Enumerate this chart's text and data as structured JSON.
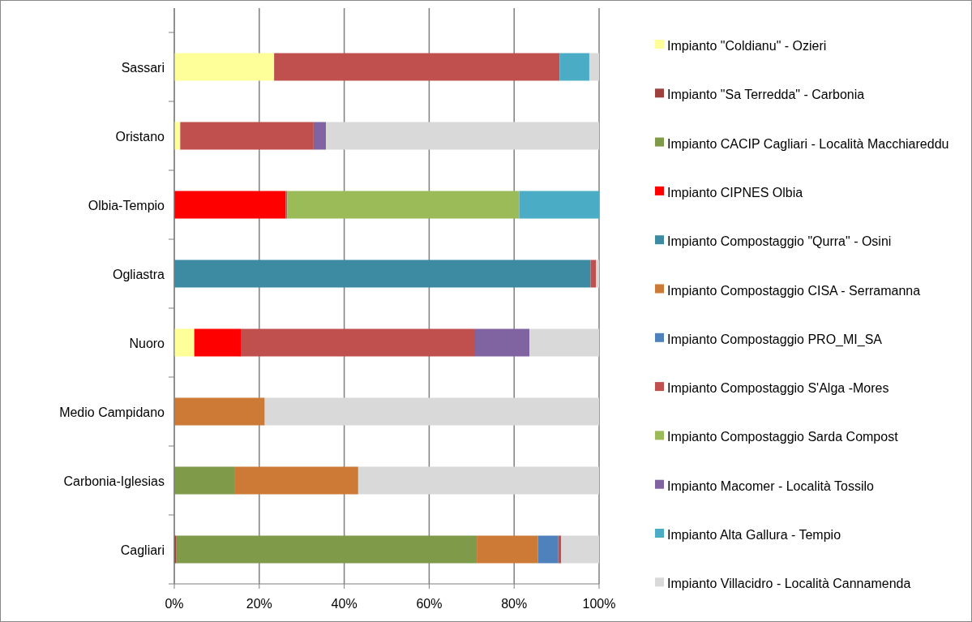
{
  "chart_data": {
    "type": "bar",
    "orientation": "horizontal",
    "stacked": true,
    "categories": [
      "Sassari",
      "Oristano",
      "Olbia-Tempio",
      "Ogliastra",
      "Nuoro",
      "Medio Campidano",
      "Carbonia-Iglesias",
      "Cagliari"
    ],
    "series": [
      {
        "name": "Impianto  \"Coldianu\" - Ozieri",
        "color": "#ffff99",
        "values": [
          23.5,
          1.4,
          0,
          0,
          4.7,
          0,
          0,
          0
        ]
      },
      {
        "name": "Impianto \"Sa Terredda\" - Carbonia",
        "color": "#a0403c",
        "values": [
          0,
          0,
          0,
          0,
          0,
          0,
          0,
          0.5
        ]
      },
      {
        "name": "Impianto CACIP Cagliari - Località Macchiareddu",
        "color": "#7f9a48",
        "values": [
          0,
          0,
          0,
          0,
          0,
          0,
          14.3,
          70.7
        ]
      },
      {
        "name": "Impianto CIPNES Olbia",
        "color": "#ff0000",
        "values": [
          0,
          0,
          26.2,
          0,
          11.1,
          0,
          0,
          0
        ]
      },
      {
        "name": "Impianto Compostaggio  \"Qurra\" - Osini",
        "color": "#3d8ba3",
        "values": [
          0,
          0,
          0,
          98.0,
          0,
          0,
          0,
          0
        ]
      },
      {
        "name": "Impianto Compostaggio CISA - Serramanna",
        "color": "#cd7a37",
        "values": [
          0,
          0,
          0,
          0,
          0,
          21.3,
          29.0,
          14.4
        ]
      },
      {
        "name": "Impianto Compostaggio PRO_MI_SA",
        "color": "#4f81bd",
        "values": [
          0,
          0,
          0,
          0,
          0,
          0,
          0,
          4.8
        ]
      },
      {
        "name": "Impianto Compostaggio S'Alga -Mores",
        "color": "#c0504d",
        "values": [
          67.2,
          31.4,
          0.4,
          1.3,
          55.0,
          0,
          0,
          0.7
        ]
      },
      {
        "name": "Impianto Compostaggio Sarda Compost",
        "color": "#9bbb59",
        "values": [
          0,
          0,
          54.6,
          0,
          0,
          0,
          0,
          0
        ]
      },
      {
        "name": "Impianto Macomer - Località Tossilo",
        "color": "#8064a2",
        "values": [
          0,
          2.9,
          0,
          0,
          12.8,
          0,
          0,
          0
        ]
      },
      {
        "name": "Impianto Alta Gallura - Tempio",
        "color": "#4bacc6",
        "values": [
          7.0,
          0,
          18.8,
          0,
          0,
          0,
          0,
          0
        ]
      },
      {
        "name": "Impianto Villacidro - Località Cannamenda",
        "color": "#d9d9d9",
        "values": [
          2.3,
          64.3,
          0,
          0.7,
          16.4,
          78.7,
          56.7,
          8.9
        ]
      }
    ],
    "xlim": [
      0,
      100
    ],
    "xticks": [
      {
        "value": 0,
        "label": "0%"
      },
      {
        "value": 20,
        "label": "20%"
      },
      {
        "value": 40,
        "label": "40%"
      },
      {
        "value": 60,
        "label": "60%"
      },
      {
        "value": 80,
        "label": "80%"
      },
      {
        "value": 100,
        "label": "100%"
      }
    ],
    "grid": "x",
    "legend": "right"
  }
}
